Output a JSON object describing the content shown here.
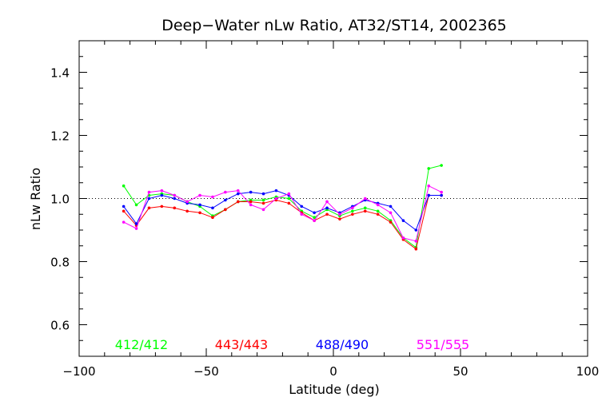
{
  "chart_data": {
    "type": "line",
    "title": "Deep−Water nLw Ratio, AT32/ST14, 2002365",
    "xlabel": "Latitude (deg)",
    "ylabel": "nLw Ratio",
    "xlim": [
      -100,
      100
    ],
    "ylim": [
      0.5,
      1.5
    ],
    "x_ticks": [
      -100,
      -50,
      0,
      50,
      100
    ],
    "x_tick_labels": [
      "−100",
      "−50",
      "0",
      "50",
      "100"
    ],
    "y_ticks": [
      0.6,
      0.8,
      1.0,
      1.2,
      1.4
    ],
    "y_tick_labels": [
      "0.6",
      "0.8",
      "1.0",
      "1.2",
      "1.4"
    ],
    "reference_line": 1.0,
    "grid": false,
    "legend_placement": "bottom",
    "series": [
      {
        "name": "412/412",
        "color": "#00ff00",
        "x": [
          -82.5,
          -77.5,
          -72.5,
          -67.5,
          -62.5,
          -57.5,
          -52.5,
          -47.5,
          -42.5,
          -37.5,
          -32.5,
          -27.5,
          -22.5,
          -17.5,
          -12.5,
          -7.5,
          -2.5,
          2.5,
          7.5,
          12.5,
          17.5,
          22.5,
          27.5,
          32.5,
          37.5,
          42.5
        ],
        "y": [
          1.04,
          0.98,
          1.01,
          1.015,
          1.01,
          0.99,
          0.975,
          0.945,
          0.965,
          0.99,
          0.995,
          0.995,
          1.005,
          1.0,
          0.96,
          0.94,
          0.965,
          0.945,
          0.96,
          0.97,
          0.96,
          0.93,
          0.875,
          0.845,
          1.095,
          1.105
        ]
      },
      {
        "name": "443/443",
        "color": "#ff0000",
        "x": [
          -82.5,
          -77.5,
          -72.5,
          -67.5,
          -62.5,
          -57.5,
          -52.5,
          -47.5,
          -42.5,
          -37.5,
          -32.5,
          -27.5,
          -22.5,
          -17.5,
          -12.5,
          -7.5,
          -2.5,
          2.5,
          7.5,
          12.5,
          17.5,
          22.5,
          27.5,
          32.5,
          37.5,
          42.5
        ],
        "y": [
          0.96,
          0.915,
          0.97,
          0.975,
          0.97,
          0.96,
          0.955,
          0.94,
          0.965,
          0.99,
          0.99,
          0.985,
          0.995,
          0.985,
          0.955,
          0.93,
          0.95,
          0.935,
          0.95,
          0.96,
          0.95,
          0.925,
          0.87,
          0.84,
          1.01,
          1.01
        ]
      },
      {
        "name": "488/490",
        "color": "#0000ff",
        "x": [
          -82.5,
          -77.5,
          -72.5,
          -67.5,
          -62.5,
          -57.5,
          -52.5,
          -47.5,
          -42.5,
          -37.5,
          -32.5,
          -27.5,
          -22.5,
          -17.5,
          -12.5,
          -7.5,
          -2.5,
          2.5,
          7.5,
          12.5,
          17.5,
          22.5,
          27.5,
          32.5,
          37.5,
          42.5
        ],
        "y": [
          0.975,
          0.92,
          1.0,
          1.01,
          1.0,
          0.985,
          0.98,
          0.97,
          0.995,
          1.015,
          1.02,
          1.015,
          1.025,
          1.01,
          0.975,
          0.955,
          0.97,
          0.955,
          0.975,
          0.995,
          0.985,
          0.975,
          0.93,
          0.9,
          1.01,
          1.01
        ]
      },
      {
        "name": "551/555",
        "color": "#ff00ff",
        "x": [
          -82.5,
          -77.5,
          -72.5,
          -67.5,
          -62.5,
          -57.5,
          -52.5,
          -47.5,
          -42.5,
          -37.5,
          -32.5,
          -27.5,
          -22.5,
          -17.5,
          -12.5,
          -7.5,
          -2.5,
          2.5,
          7.5,
          12.5,
          17.5,
          22.5,
          27.5,
          32.5,
          37.5,
          42.5
        ],
        "y": [
          0.925,
          0.905,
          1.02,
          1.025,
          1.01,
          0.99,
          1.01,
          1.005,
          1.02,
          1.025,
          0.98,
          0.965,
          1.0,
          1.015,
          0.95,
          0.93,
          0.99,
          0.95,
          0.97,
          1.0,
          0.98,
          0.955,
          0.875,
          0.865,
          1.04,
          1.02
        ]
      }
    ]
  }
}
